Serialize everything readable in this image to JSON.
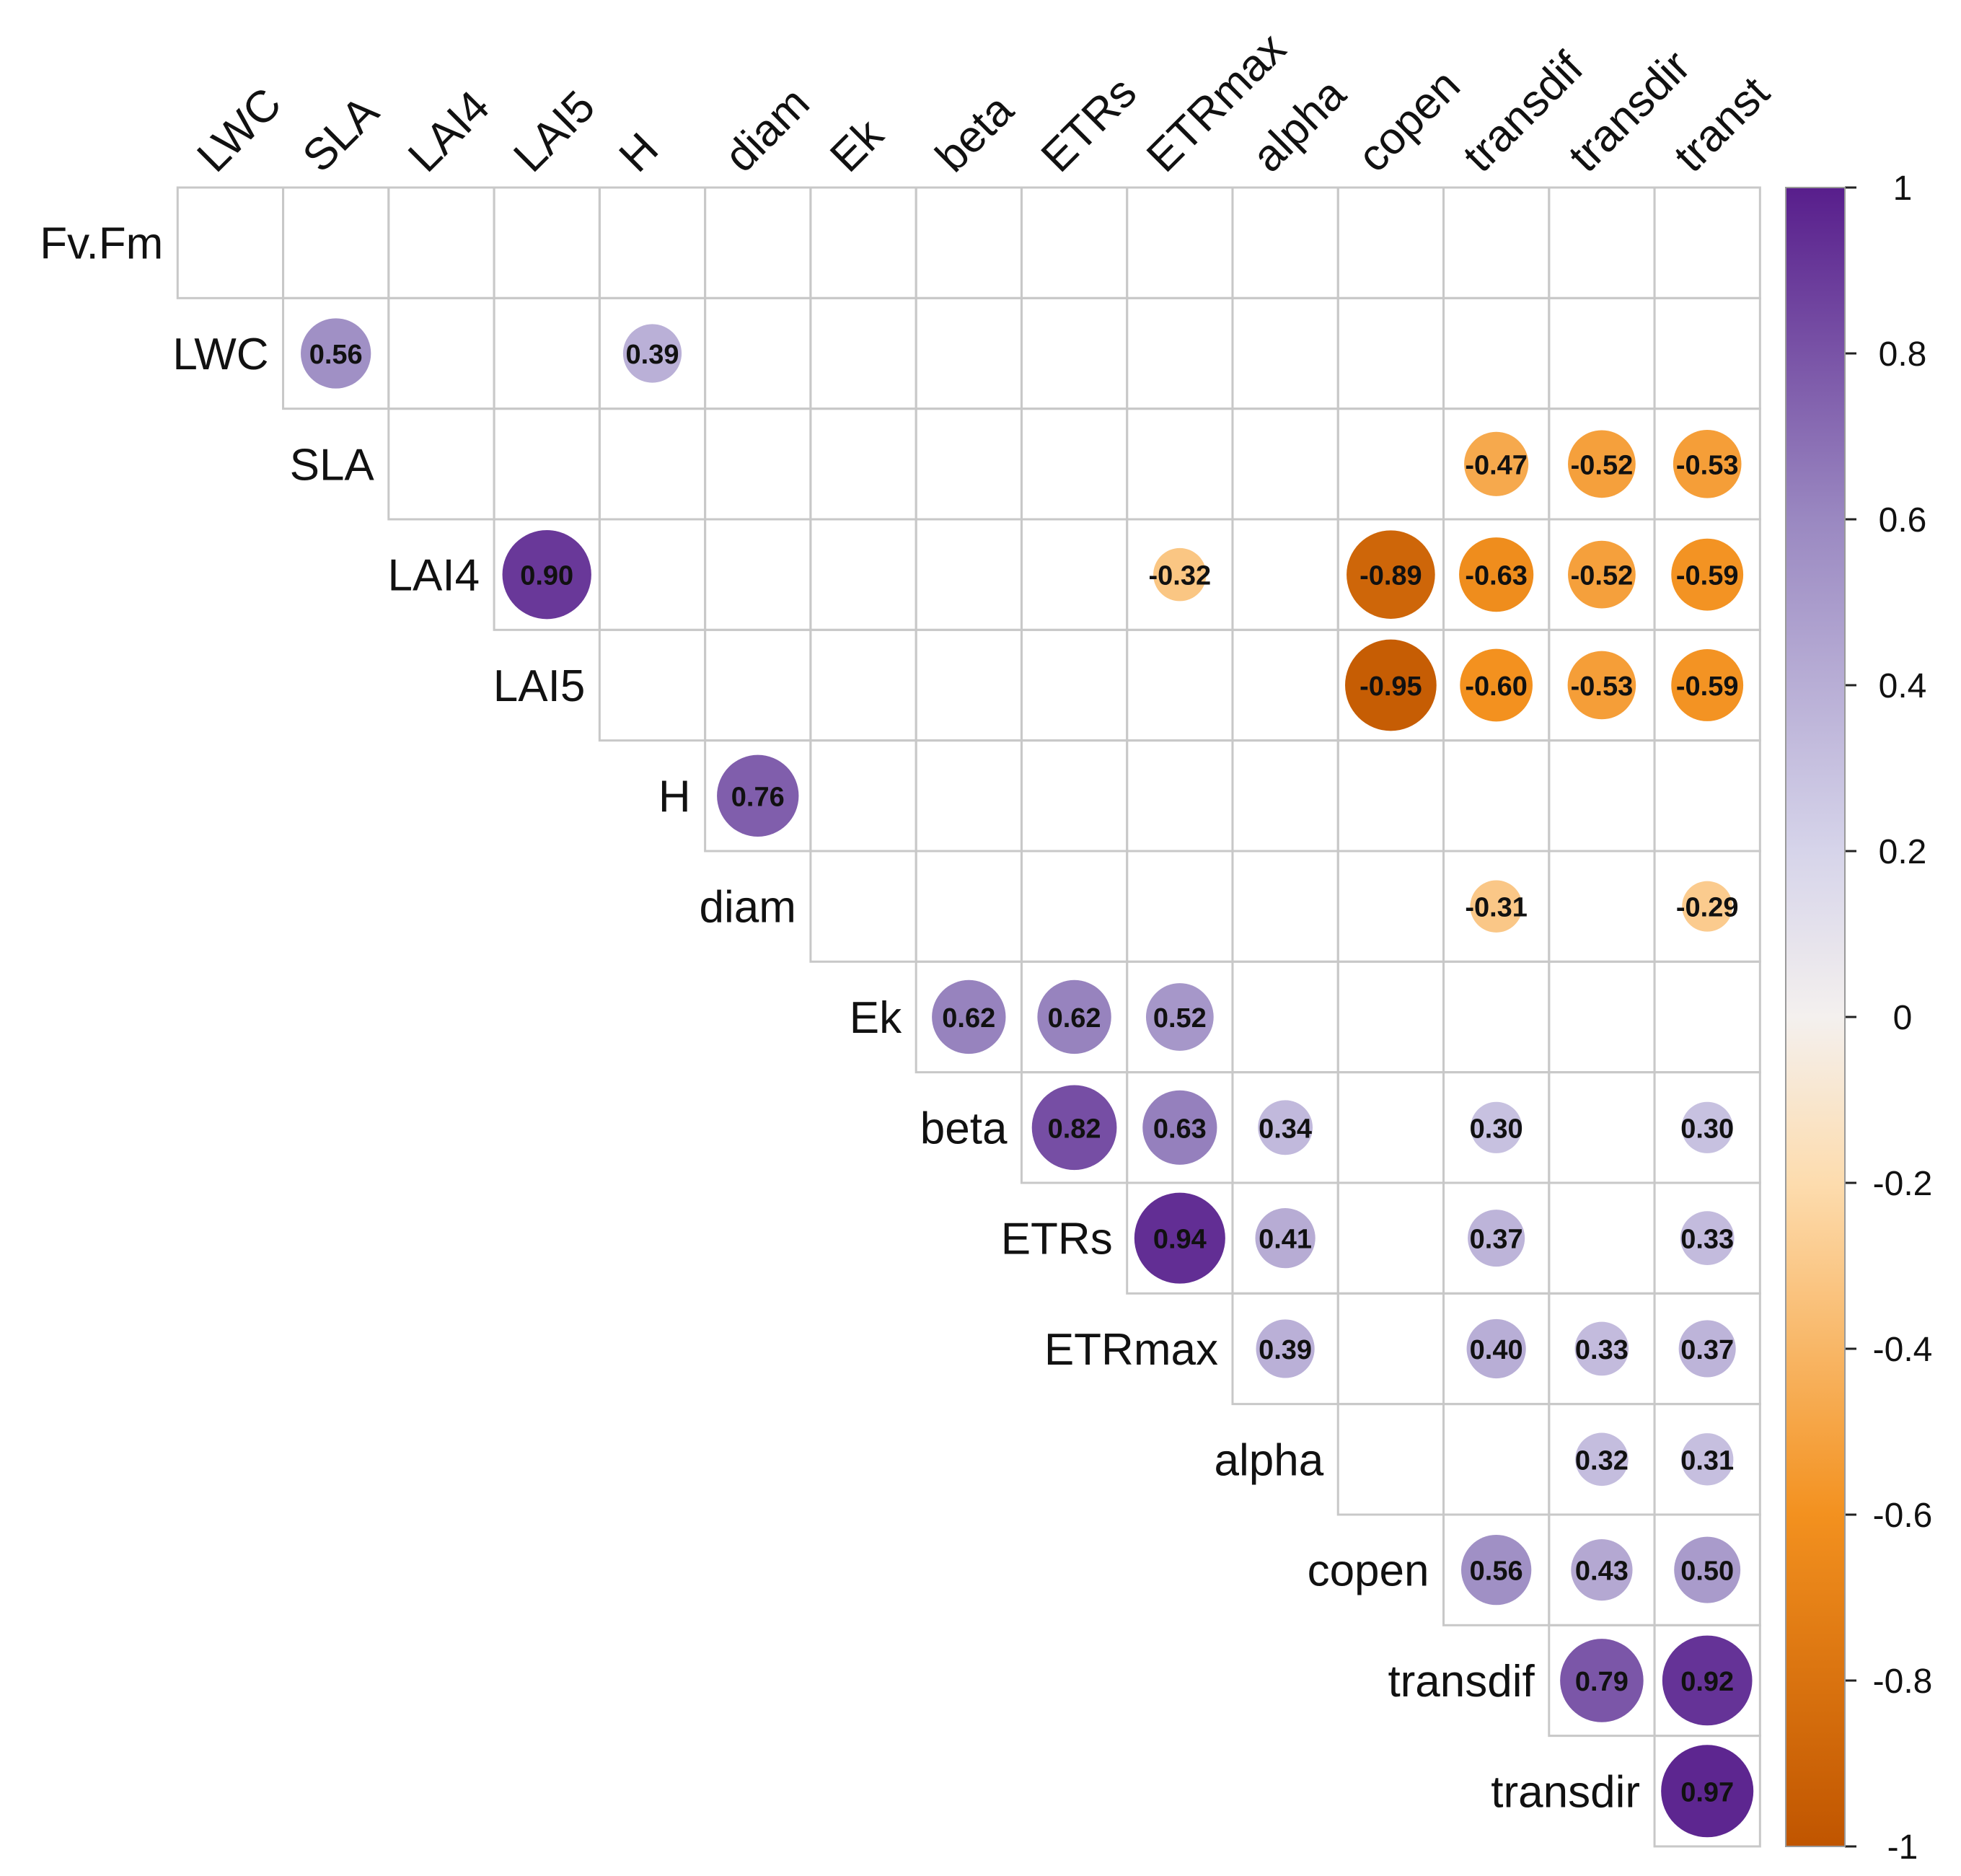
{
  "chart_data": {
    "type": "heatmap",
    "subtype": "correlation-upper-triangle",
    "variables": [
      "Fv.Fm",
      "LWC",
      "SLA",
      "LAI4",
      "LAI5",
      "H",
      "diam",
      "Ek",
      "beta",
      "ETRs",
      "ETRmax",
      "alpha",
      "copen",
      "transdif",
      "transdir",
      "transt"
    ],
    "row_labels": [
      "Fv.Fm",
      "LWC",
      "SLA",
      "LAI4",
      "LAI5",
      "H",
      "diam",
      "Ek",
      "beta",
      "ETRs",
      "ETRmax",
      "alpha",
      "copen",
      "transdif",
      "transdir"
    ],
    "column_labels": [
      "LWC",
      "SLA",
      "LAI4",
      "LAI5",
      "H",
      "diam",
      "Ek",
      "beta",
      "ETRs",
      "ETRmax",
      "alpha",
      "copen",
      "transdif",
      "transdir",
      "transt"
    ],
    "cells": [
      {
        "row": "LWC",
        "col": "SLA",
        "value": 0.56,
        "label": "0.56"
      },
      {
        "row": "LWC",
        "col": "H",
        "value": 0.39,
        "label": "0.39"
      },
      {
        "row": "SLA",
        "col": "transdif",
        "value": -0.47,
        "label": "-0.47"
      },
      {
        "row": "SLA",
        "col": "transdir",
        "value": -0.52,
        "label": "-0.52"
      },
      {
        "row": "SLA",
        "col": "transt",
        "value": -0.53,
        "label": "-0.53"
      },
      {
        "row": "LAI4",
        "col": "LAI5",
        "value": 0.9,
        "label": "0.90"
      },
      {
        "row": "LAI4",
        "col": "ETRmax",
        "value": -0.32,
        "label": "-0.32"
      },
      {
        "row": "LAI4",
        "col": "copen",
        "value": -0.89,
        "label": "-0.89"
      },
      {
        "row": "LAI4",
        "col": "transdif",
        "value": -0.63,
        "label": "-0.63"
      },
      {
        "row": "LAI4",
        "col": "transdir",
        "value": -0.52,
        "label": "-0.52"
      },
      {
        "row": "LAI4",
        "col": "transt",
        "value": -0.59,
        "label": "-0.59"
      },
      {
        "row": "LAI5",
        "col": "copen",
        "value": -0.95,
        "label": "-0.95"
      },
      {
        "row": "LAI5",
        "col": "transdif",
        "value": -0.6,
        "label": "-0.60"
      },
      {
        "row": "LAI5",
        "col": "transdir",
        "value": -0.53,
        "label": "-0.53"
      },
      {
        "row": "LAI5",
        "col": "transt",
        "value": -0.59,
        "label": "-0.59"
      },
      {
        "row": "H",
        "col": "diam",
        "value": 0.76,
        "label": "0.76"
      },
      {
        "row": "diam",
        "col": "transdif",
        "value": -0.31,
        "label": "-0.31"
      },
      {
        "row": "diam",
        "col": "transt",
        "value": -0.29,
        "label": "-0.29"
      },
      {
        "row": "Ek",
        "col": "beta",
        "value": 0.62,
        "label": "0.62"
      },
      {
        "row": "Ek",
        "col": "ETRs",
        "value": 0.62,
        "label": "0.62"
      },
      {
        "row": "Ek",
        "col": "ETRmax",
        "value": 0.52,
        "label": "0.52"
      },
      {
        "row": "beta",
        "col": "ETRs",
        "value": 0.82,
        "label": "0.82"
      },
      {
        "row": "beta",
        "col": "ETRmax",
        "value": 0.63,
        "label": "0.63"
      },
      {
        "row": "beta",
        "col": "alpha",
        "value": 0.34,
        "label": "0.34"
      },
      {
        "row": "beta",
        "col": "transdif",
        "value": 0.3,
        "label": "0.30"
      },
      {
        "row": "beta",
        "col": "transt",
        "value": 0.3,
        "label": "0.30"
      },
      {
        "row": "ETRs",
        "col": "ETRmax",
        "value": 0.94,
        "label": "0.94"
      },
      {
        "row": "ETRs",
        "col": "alpha",
        "value": 0.41,
        "label": "0.41"
      },
      {
        "row": "ETRs",
        "col": "transdif",
        "value": 0.37,
        "label": "0.37"
      },
      {
        "row": "ETRs",
        "col": "transt",
        "value": 0.33,
        "label": "0.33"
      },
      {
        "row": "ETRmax",
        "col": "alpha",
        "value": 0.39,
        "label": "0.39"
      },
      {
        "row": "ETRmax",
        "col": "transdif",
        "value": 0.4,
        "label": "0.40"
      },
      {
        "row": "ETRmax",
        "col": "transdir",
        "value": 0.33,
        "label": "0.33"
      },
      {
        "row": "ETRmax",
        "col": "transt",
        "value": 0.37,
        "label": "0.37"
      },
      {
        "row": "alpha",
        "col": "transdir",
        "value": 0.32,
        "label": "0.32"
      },
      {
        "row": "alpha",
        "col": "transt",
        "value": 0.31,
        "label": "0.31"
      },
      {
        "row": "copen",
        "col": "transdif",
        "value": 0.56,
        "label": "0.56"
      },
      {
        "row": "copen",
        "col": "transdir",
        "value": 0.43,
        "label": "0.43"
      },
      {
        "row": "copen",
        "col": "transt",
        "value": 0.5,
        "label": "0.50"
      },
      {
        "row": "transdif",
        "col": "transdir",
        "value": 0.79,
        "label": "0.79"
      },
      {
        "row": "transdif",
        "col": "transt",
        "value": 0.92,
        "label": "0.92"
      },
      {
        "row": "transdir",
        "col": "transt",
        "value": 0.97,
        "label": "0.97"
      }
    ],
    "colorbar": {
      "range": [
        -1,
        1
      ],
      "ticks": [
        1,
        0.8,
        0.6,
        0.4,
        0.2,
        0,
        -0.2,
        -0.4,
        -0.6,
        -0.8,
        -1
      ],
      "tick_labels": [
        "1",
        "0.8",
        "0.6",
        "0.4",
        "0.2",
        "0",
        "-0.2",
        "-0.4",
        "-0.6",
        "-0.8",
        "-1"
      ],
      "placement": "right",
      "colors": {
        "neg_1": "#c05500",
        "neg_0_6": "#f3911f",
        "neg_0_2": "#fddcae",
        "zero": "#f4f0ee",
        "pos_0_2": "#d6d4ea",
        "pos_0_6": "#9a88c1",
        "pos_1": "#581e8c"
      }
    },
    "grid": true
  }
}
